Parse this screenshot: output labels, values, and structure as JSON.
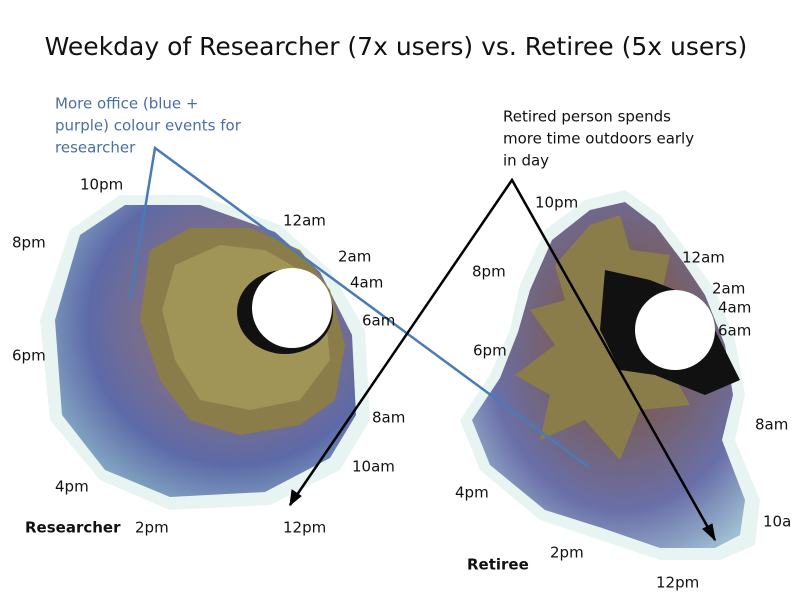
{
  "title": "Weekday of Researcher (7x users) vs. Retiree (5x users)",
  "annotations": [
    {
      "lines": [
        "More office (blue +",
        "purple) colour events for",
        "researcher"
      ]
    },
    {
      "lines": [
        "Retired person spends",
        "more time outdoors early",
        "in day"
      ]
    }
  ],
  "researcher": {
    "name": "Researcher",
    "labels": [
      "10pm",
      "12am",
      "2am",
      "4am",
      "6am",
      "8am",
      "10am",
      "12pm",
      "2pm",
      "4pm",
      "6pm",
      "8pm"
    ]
  },
  "retiree": {
    "name": "Retiree",
    "labels": [
      "10pm",
      "12am",
      "2am",
      "4am",
      "6am",
      "8am",
      "10a",
      "12pm",
      "2pm",
      "4pm",
      "6pm",
      "8pm"
    ]
  }
}
